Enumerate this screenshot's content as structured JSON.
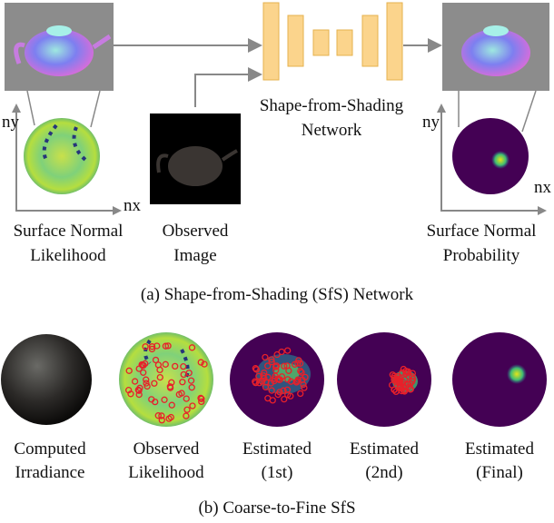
{
  "panel_a": {
    "left_plot": {
      "y_axis": "ny",
      "x_axis": "nx",
      "label": [
        "Surface Normal",
        "Likelihood"
      ]
    },
    "input": {
      "label": [
        "Observed",
        "Image"
      ]
    },
    "network": {
      "label": [
        "Shape-from-Shading",
        "Network"
      ]
    },
    "right_plot": {
      "y_axis": "ny",
      "x_axis": "nx",
      "label": [
        "Surface Normal",
        "Probability"
      ]
    },
    "caption": "(a) Shape-from-Shading (SfS) Network"
  },
  "panel_b": {
    "items": [
      {
        "label": [
          "Computed",
          "Irradiance"
        ]
      },
      {
        "label": [
          "Observed",
          "Likelihood"
        ]
      },
      {
        "label": [
          "Estimated",
          "(1st)"
        ]
      },
      {
        "label": [
          "Estimated",
          "(2nd)"
        ]
      },
      {
        "label": [
          "Estimated",
          "(Final)"
        ]
      }
    ],
    "caption": "(b) Coarse-to-Fine SfS"
  }
}
